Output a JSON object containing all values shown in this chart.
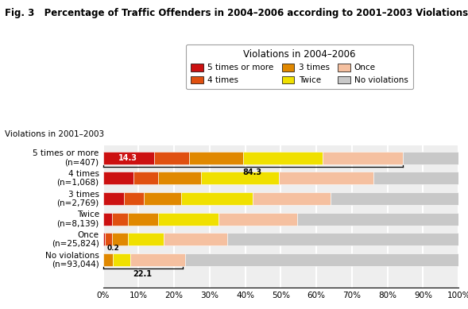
{
  "title": "Fig. 3   Percentage of Traffic Offenders in 2004–2006 according to 2001–2003 Violations",
  "legend_title": "Violations in 2004–2006",
  "categories": [
    "5 times or more\n(n=407)",
    "4 times\n(n=1,068)",
    "3 times\n(n=2,769)",
    "Twice\n(n=8,139)",
    "Once\n(n=25,824)",
    "No violations\n(n=93,044)"
  ],
  "series_labels": [
    "5 times or more",
    "4 times",
    "3 times",
    "Twice",
    "Once",
    "No violations"
  ],
  "colors": [
    "#cc1111",
    "#e05010",
    "#e08800",
    "#f0e000",
    "#f5c0a0",
    "#c8c8c8"
  ],
  "data": [
    [
      14.3,
      10.0,
      15.0,
      22.5,
      22.5,
      15.7
    ],
    [
      8.5,
      7.0,
      12.0,
      22.0,
      26.5,
      24.0
    ],
    [
      6.0,
      5.5,
      10.5,
      20.0,
      22.0,
      36.0
    ],
    [
      2.5,
      4.5,
      8.5,
      17.0,
      22.0,
      45.5
    ],
    [
      0.5,
      2.0,
      4.5,
      10.0,
      18.0,
      65.0
    ],
    [
      0.0,
      0.2,
      2.5,
      5.0,
      15.5,
      76.8
    ]
  ],
  "figsize": [
    5.89,
    3.89
  ],
  "dpi": 100
}
